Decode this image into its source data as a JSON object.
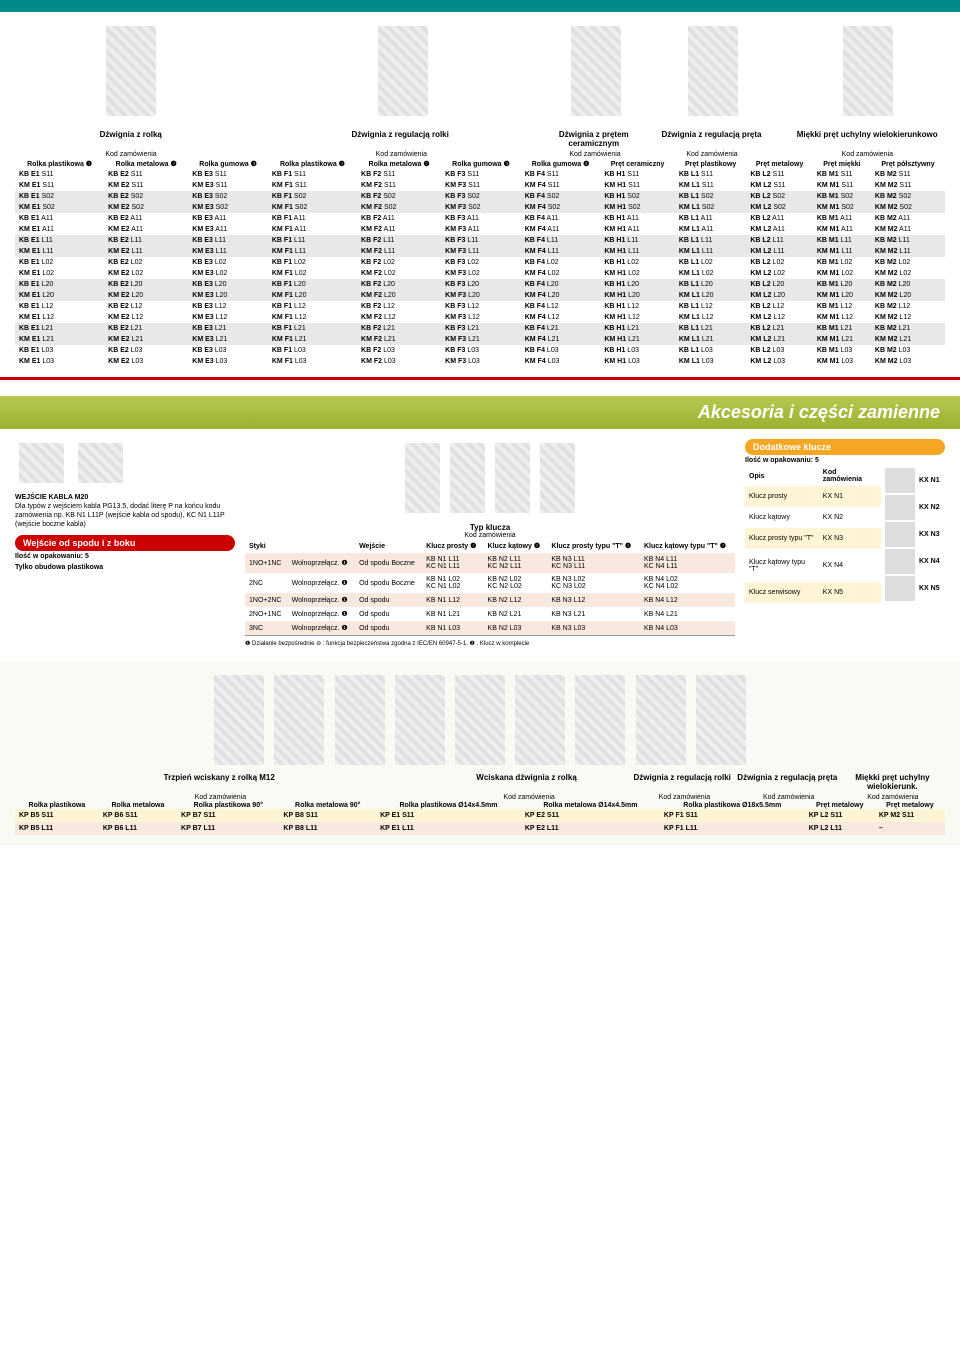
{
  "top_headers": [
    "Dźwignia z rolką",
    "Dźwignia z regulacją rolki",
    "Dźwignia z prętem ceramicznym",
    "Dźwignia z regulacją pręta",
    "Miękki pręt uchylny wielokierunkowo"
  ],
  "kod": "Kod zamówienia",
  "col_heads": [
    "Rolka plastikowa ❷",
    "Rolka metalowa ❷",
    "Rolka gumowa ❸",
    "Rolka plastikowa ❷",
    "Rolka metalowa ❷",
    "Rolka gumowa ❸",
    "Rolka gumowa ❹",
    "Pręt ceramiczny",
    "Pręt plastikowy",
    "Pręt metalowy",
    "Pręt miękki",
    "Pręt półsztywny"
  ],
  "grid_rows": [
    [
      "KB E1 S11",
      "KB E2 S11",
      "KB E3 S11",
      "KB F1 S11",
      "KB F2 S11",
      "KB F3 S11",
      "KB F4 S11",
      "KB H1 S11",
      "KB L1 S11",
      "KB L2 S11",
      "KB M1 S11",
      "KB M2 S11"
    ],
    [
      "KM E1 S11",
      "KM E2 S11",
      "KM E3 S11",
      "KM F1 S11",
      "KM F2 S11",
      "KM F3 S11",
      "KM F4 S11",
      "KM H1 S11",
      "KM L1 S11",
      "KM L2 S11",
      "KM M1 S11",
      "KM M2 S11"
    ],
    [
      "KB E1 S02",
      "KB E2 S02",
      "KB E3 S02",
      "KB F1 S02",
      "KB F2 S02",
      "KB F3 S02",
      "KB F4 S02",
      "KB H1 S02",
      "KB L1 S02",
      "KB L2 S02",
      "KB M1 S02",
      "KB M2 S02"
    ],
    [
      "KM E1 S02",
      "KM E2 S02",
      "KM E3 S02",
      "KM F1 S02",
      "KM F2 S02",
      "KM F3 S02",
      "KM F4 S02",
      "KM H1 S02",
      "KM L1 S02",
      "KM L2 S02",
      "KM M1 S02",
      "KM M2 S02"
    ],
    [
      "KB E1 A11",
      "KB E2 A11",
      "KB E3 A11",
      "KB F1 A11",
      "KB F2 A11",
      "KB F3 A11",
      "KB F4 A11",
      "KB H1 A11",
      "KB L1 A11",
      "KB L2 A11",
      "KB M1 A11",
      "KB M2 A11"
    ],
    [
      "KM E1 A11",
      "KM E2 A11",
      "KM E3 A11",
      "KM F1 A11",
      "KM F2 A11",
      "KM F3 A11",
      "KM F4 A11",
      "KM H1 A11",
      "KM L1 A11",
      "KM L2 A11",
      "KM M1 A11",
      "KM M2 A11"
    ],
    [
      "KB E1 L11",
      "KB E2 L11",
      "KB E3 L11",
      "KB F1 L11",
      "KB F2 L11",
      "KB F3 L11",
      "KB F4 L11",
      "KB H1 L11",
      "KB L1 L11",
      "KB L2 L11",
      "KB M1 L11",
      "KB M2 L11"
    ],
    [
      "KM E1 L11",
      "KM E2 L11",
      "KM E3 L11",
      "KM F1 L11",
      "KM F2 L11",
      "KM F3 L11",
      "KM F4 L11",
      "KM H1 L11",
      "KM L1 L11",
      "KM L2 L11",
      "KM M1 L11",
      "KM M2 L11"
    ],
    [
      "KB E1 L02",
      "KB E2 L02",
      "KB E3 L02",
      "KB F1 L02",
      "KB F2 L02",
      "KB F3 L02",
      "KB F4 L02",
      "KB H1 L02",
      "KB L1 L02",
      "KB L2 L02",
      "KB M1 L02",
      "KB M2 L02"
    ],
    [
      "KM E1 L02",
      "KM E2 L02",
      "KM E3 L02",
      "KM F1 L02",
      "KM F2 L02",
      "KM F3 L02",
      "KM F4 L02",
      "KM H1 L02",
      "KM L1 L02",
      "KM L2 L02",
      "KM M1 L02",
      "KM M2 L02"
    ],
    [
      "KB E1 L20",
      "KB E2 L20",
      "KB E3 L20",
      "KB F1 L20",
      "KB F2 L20",
      "KB F3 L20",
      "KB F4 L20",
      "KB H1 L20",
      "KB L1 L20",
      "KB L2 L20",
      "KB M1 L20",
      "KB M2 L20"
    ],
    [
      "KM E1 L20",
      "KM E2 L20",
      "KM E3 L20",
      "KM F1 L20",
      "KM F2 L20",
      "KM F3 L20",
      "KM F4 L20",
      "KM H1 L20",
      "KM L1 L20",
      "KM L2 L20",
      "KM M1 L20",
      "KM M2 L20"
    ],
    [
      "KB E1 L12",
      "KB E2 L12",
      "KB E3 L12",
      "KB F1 L12",
      "KB F2 L12",
      "KB F3 L12",
      "KB F4 L12",
      "KB H1 L12",
      "KB L1 L12",
      "KB L2 L12",
      "KB M1 L12",
      "KB M2 L12"
    ],
    [
      "KM E1 L12",
      "KM E2 L12",
      "KM E3 L12",
      "KM F1 L12",
      "KM F2 L12",
      "KM F3 L12",
      "KM F4 L12",
      "KM H1 L12",
      "KM L1 L12",
      "KM L2 L12",
      "KM M1 L12",
      "KM M2 L12"
    ],
    [
      "KB E1 L21",
      "KB E2 L21",
      "KB E3 L21",
      "KB F1 L21",
      "KB F2 L21",
      "KB F3 L21",
      "KB F4 L21",
      "KB H1 L21",
      "KB L1 L21",
      "KB L2 L21",
      "KB M1 L21",
      "KB M2 L21"
    ],
    [
      "KM E1 L21",
      "KM E2 L21",
      "KM E3 L21",
      "KM F1 L21",
      "KM F2 L21",
      "KM F3 L21",
      "KM F4 L21",
      "KM H1 L21",
      "KM L1 L21",
      "KM L2 L21",
      "KM M1 L21",
      "KM M2 L21"
    ],
    [
      "KB E1 L03",
      "KB E2 L03",
      "KB E3 L03",
      "KB F1 L03",
      "KB F2 L03",
      "KB F3 L03",
      "KB F4 L03",
      "KB H1 L03",
      "KB L1 L03",
      "KB L2 L03",
      "KB M1 L03",
      "KB M2 L03"
    ],
    [
      "KM E1 L03",
      "KM E2 L03",
      "KM E3 L03",
      "KM F1 L03",
      "KM F2 L03",
      "KM F3 L03",
      "KM F4 L03",
      "KM H1 L03",
      "KM L1 L03",
      "KM L2 L03",
      "KM M1 L03",
      "KM M2 L03"
    ]
  ],
  "section_title": "Akcesoria i części zamienne",
  "note_title": "WEJŚCIE KABLA M20",
  "note_body": "Dla typów z wejściem kabla PG13.5, dodać literę P na końcu kodu zamówienia np. KB N1 L11P (wejście kabla od spodu), KC N1 L11P (wejście boczne kabla)",
  "side_header": "Wejście od spodu i z boku",
  "pack_info": "Ilość w opakowaniu: 5",
  "pack_sub": "Tylko obudowa plastikowa",
  "col_styki": "Styki",
  "col_wejscie": "Wejście",
  "key_title": "Typ klucza",
  "key_cols": [
    "Klucz prosty ❷",
    "Klucz kątowy ❷",
    "Klucz prosty typu \"T\" ❷",
    "Klucz kątowy typu \"T\" ❷"
  ],
  "key_rows": [
    {
      "cls": "pink",
      "c": [
        "1NO+1NC",
        "Wolnoprzełącz. ❶",
        "Od spodu Boczne",
        "KB N1 L11\nKC N1 L11",
        "KB N2 L11\nKC N2 L11",
        "KB N3 L11\nKC N3 L11",
        "KB N4 L11\nKC N4 L11"
      ]
    },
    {
      "cls": "",
      "c": [
        "2NC",
        "Wolnoprzełącz. ❶",
        "Od spodu Boczne",
        "KB N1 L02\nKC N1 L02",
        "KB N2 L02\nKC N2 L02",
        "KB N3 L02\nKC N3 L02",
        "KB N4 L02\nKC N4 L02"
      ]
    },
    {
      "cls": "pink",
      "c": [
        "1NO+2NC",
        "Wolnoprzełącz. ❶",
        "Od spodu",
        "KB N1 L12",
        "KB N2 L12",
        "KB N3 L12",
        "KB N4 L12"
      ]
    },
    {
      "cls": "",
      "c": [
        "2NO+1NC",
        "Wolnoprzełącz. ❶",
        "Od spodu",
        "KB N1 L21",
        "KB N2 L21",
        "KB N3 L21",
        "KB N4 L21"
      ]
    },
    {
      "cls": "pink",
      "c": [
        "3NC",
        "Wolnoprzełącz. ❶",
        "Od spodu",
        "KB N1 L03",
        "KB N2 L03",
        "KB N3 L03",
        "KB N4 L03"
      ]
    }
  ],
  "footnote": "❶ Działanie bezpośrednie ⊖ : funkcja bezpieczeństwa zgodna z IEC/EN 60947-5-1. ❷ . Klucz w komplecie",
  "extra_header": "Dodatkowe klucze",
  "extra_pack": "Ilość w opakowaniu: 5",
  "opis": "Opis",
  "kod_col": "Kod zamówienia",
  "extra_rows": [
    {
      "cls": "yellow",
      "c": [
        "Klucz prosty",
        "KX N1"
      ]
    },
    {
      "cls": "",
      "c": [
        "Klucz kątowy",
        "KX N2"
      ]
    },
    {
      "cls": "yellow",
      "c": [
        "Klucz prosty typu \"T\"",
        "KX N3"
      ]
    },
    {
      "cls": "",
      "c": [
        "Klucz kątowy typu \"T\"",
        "KX N4"
      ]
    },
    {
      "cls": "yellow",
      "c": [
        "Klucz serwisowy",
        "KX N5"
      ]
    }
  ],
  "kx_labels": [
    "KX N1",
    "KX N2",
    "KX N3",
    "KX N4",
    "KX N5"
  ],
  "bottom_headers": [
    "Trzpień wciskany z rolką M12",
    "Wciskana dźwignia z rolką",
    "Dźwignia z regulacją rolki",
    "Dźwignia z regulacją pręta",
    "Miękki pręt uchylny wielokierunk."
  ],
  "bottom_cols": [
    "Rolka plastikowa",
    "Rolka metalowa",
    "Rolka plastikowa 90°",
    "Rolka metalowa 90°",
    "Rolka plastikowa Ø14x4.5mm",
    "Rolka metalowa Ø14x4.5mm",
    "Rolka plastikowa Ø18x5.5mm",
    "Pręt metalowy",
    "Pręt metalowy"
  ],
  "bottom_rows": [
    {
      "cls": "yellow",
      "c": [
        "KP B5 S11",
        "KP B6 S11",
        "KP B7 S11",
        "KP B8 S11",
        "KP E1 S11",
        "KP E2 S11",
        "KP F1 S11",
        "KP L2 S11",
        "KP M2 S11"
      ]
    },
    {
      "cls": "pink",
      "c": [
        "KP B5 L11",
        "KP B6 L11",
        "KP B7 L11",
        "KP B8 L11",
        "KP E1 L11",
        "KP E2 L11",
        "KP F1 L11",
        "KP L2 L11",
        "–"
      ]
    }
  ]
}
